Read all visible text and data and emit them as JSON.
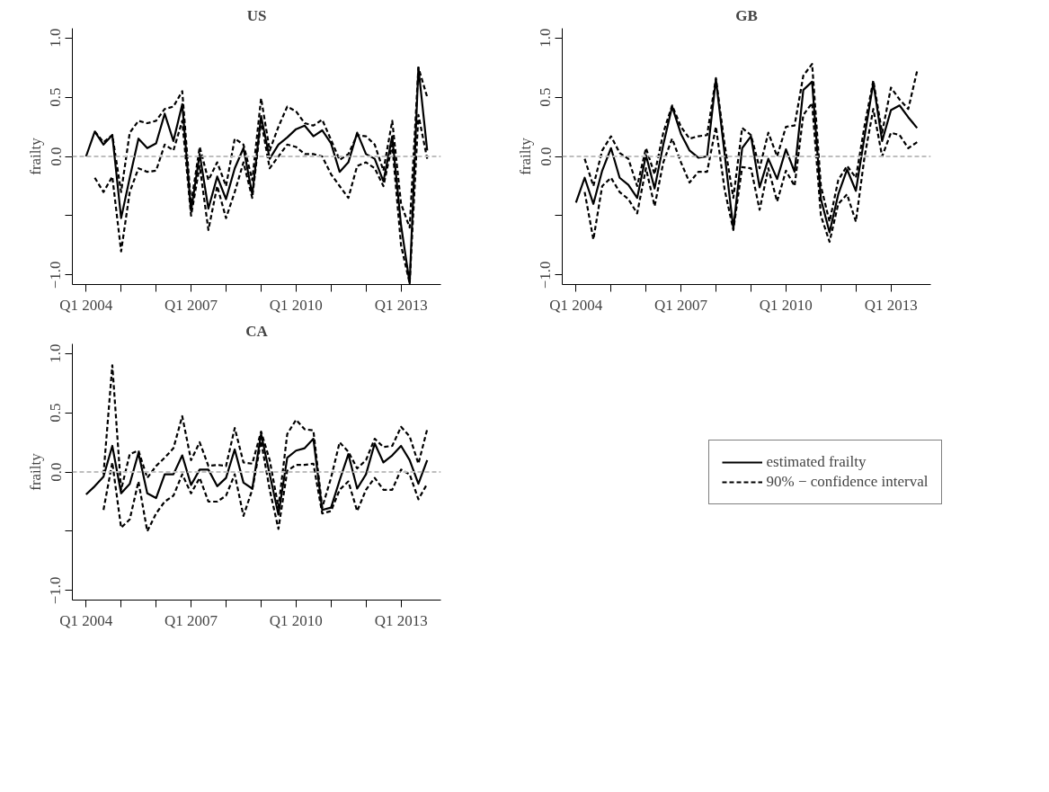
{
  "chart_data": [
    {
      "type": "line",
      "title": "US",
      "ylabel": "frailty",
      "xlim": [
        "2003-08-11",
        "2014-02-21"
      ],
      "ylim": [
        -1.08,
        1.08
      ],
      "xticks": [
        {
          "value": "2004-01",
          "label": "Q1 2004"
        },
        {
          "value": "2005-01",
          "label": null
        },
        {
          "value": "2006-01",
          "label": null
        },
        {
          "value": "2007-01",
          "label": "Q1 2007"
        },
        {
          "value": "2008-01",
          "label": null
        },
        {
          "value": "2009-01",
          "label": null
        },
        {
          "value": "2010-01",
          "label": "Q1 2010"
        },
        {
          "value": "2011-01",
          "label": null
        },
        {
          "value": "2012-01",
          "label": null
        },
        {
          "value": "2013-01",
          "label": "Q1 2013"
        }
      ],
      "yticks": [
        {
          "value": -1.0,
          "label": "−1.0"
        },
        {
          "value": -0.5,
          "label": null
        },
        {
          "value": 0.0,
          "label": "0.0"
        },
        {
          "value": 0.5,
          "label": "0.5"
        },
        {
          "value": 1.0,
          "label": "1.0"
        }
      ],
      "x": [
        "2004-01",
        "2004-04",
        "2004-07",
        "2004-10",
        "2005-01",
        "2005-04",
        "2005-07",
        "2005-10",
        "2006-01",
        "2006-04",
        "2006-07",
        "2006-10",
        "2007-01",
        "2007-04",
        "2007-07",
        "2007-10",
        "2008-01",
        "2008-04",
        "2008-07",
        "2008-10",
        "2009-01",
        "2009-04",
        "2009-07",
        "2009-10",
        "2010-01",
        "2010-04",
        "2010-07",
        "2010-10",
        "2011-01",
        "2011-04",
        "2011-07",
        "2011-10",
        "2012-01",
        "2012-04",
        "2012-07",
        "2012-10",
        "2013-01",
        "2013-04",
        "2013-07",
        "2013-10"
      ],
      "ref_lines": [
        {
          "axis": "y",
          "value": 0,
          "color": "#bebebe",
          "line_style": "dashed"
        }
      ],
      "grid": false,
      "series": [
        {
          "color": "#000000",
          "line_style": "solid",
          "values": [
            0.0,
            0.21,
            0.1,
            0.18,
            -0.52,
            -0.18,
            0.15,
            0.07,
            0.11,
            0.36,
            0.13,
            0.44,
            -0.46,
            0.02,
            -0.44,
            -0.17,
            -0.36,
            -0.1,
            0.07,
            -0.32,
            0.34,
            -0.02,
            0.1,
            0.16,
            0.23,
            0.26,
            0.17,
            0.22,
            0.11,
            -0.13,
            -0.05,
            0.2,
            0.02,
            -0.02,
            -0.21,
            0.17,
            -0.58,
            -1.07,
            0.75,
            0.05
          ]
        },
        {
          "color": "#000000",
          "line_style": "dashed",
          "values": [
            null,
            0.21,
            0.12,
            0.18,
            -0.3,
            0.2,
            0.3,
            0.28,
            0.3,
            0.4,
            0.42,
            0.55,
            -0.4,
            0.08,
            -0.2,
            -0.05,
            -0.25,
            0.15,
            0.1,
            -0.2,
            0.49,
            0.05,
            0.25,
            0.42,
            0.38,
            0.28,
            0.26,
            0.31,
            0.14,
            -0.03,
            0.02,
            0.18,
            0.17,
            0.1,
            -0.12,
            0.3,
            -0.4,
            -0.6,
            0.75,
            0.5
          ]
        },
        {
          "color": "#000000",
          "line_style": "dashed",
          "values": [
            null,
            -0.18,
            -0.3,
            -0.17,
            -0.8,
            -0.3,
            -0.1,
            -0.13,
            -0.12,
            0.1,
            0.05,
            0.3,
            -0.5,
            -0.08,
            -0.62,
            -0.25,
            -0.52,
            -0.3,
            -0.05,
            -0.35,
            0.3,
            -0.1,
            0.0,
            0.1,
            0.08,
            0.02,
            0.02,
            0.0,
            -0.15,
            -0.25,
            -0.35,
            -0.08,
            -0.05,
            -0.1,
            -0.25,
            0.1,
            -0.75,
            -1.07,
            0.35,
            -0.02
          ]
        }
      ]
    },
    {
      "type": "line",
      "title": "GB",
      "ylabel": "frailty",
      "xlim": [
        "2003-08-11",
        "2014-02-21"
      ],
      "ylim": [
        -1.08,
        1.08
      ],
      "xticks": [
        {
          "value": "2004-01",
          "label": "Q1 2004"
        },
        {
          "value": "2005-01",
          "label": null
        },
        {
          "value": "2006-01",
          "label": null
        },
        {
          "value": "2007-01",
          "label": "Q1 2007"
        },
        {
          "value": "2008-01",
          "label": null
        },
        {
          "value": "2009-01",
          "label": null
        },
        {
          "value": "2010-01",
          "label": "Q1 2010"
        },
        {
          "value": "2011-01",
          "label": null
        },
        {
          "value": "2012-01",
          "label": null
        },
        {
          "value": "2013-01",
          "label": "Q1 2013"
        }
      ],
      "yticks": [
        {
          "value": -1.0,
          "label": "−1.0"
        },
        {
          "value": -0.5,
          "label": null
        },
        {
          "value": 0.0,
          "label": "0.0"
        },
        {
          "value": 0.5,
          "label": "0.5"
        },
        {
          "value": 1.0,
          "label": "1.0"
        }
      ],
      "x": [
        "2004-01",
        "2004-04",
        "2004-07",
        "2004-10",
        "2005-01",
        "2005-04",
        "2005-07",
        "2005-10",
        "2006-01",
        "2006-04",
        "2006-07",
        "2006-10",
        "2007-01",
        "2007-04",
        "2007-07",
        "2007-10",
        "2008-01",
        "2008-04",
        "2008-07",
        "2008-10",
        "2009-01",
        "2009-04",
        "2009-07",
        "2009-10",
        "2010-01",
        "2010-04",
        "2010-07",
        "2010-10",
        "2011-01",
        "2011-04",
        "2011-07",
        "2011-10",
        "2012-01",
        "2012-04",
        "2012-07",
        "2012-10",
        "2013-01",
        "2013-04",
        "2013-07",
        "2013-10"
      ],
      "ref_lines": [
        {
          "axis": "y",
          "value": 0,
          "color": "#bebebe",
          "line_style": "dashed"
        }
      ],
      "grid": false,
      "series": [
        {
          "color": "#000000",
          "line_style": "solid",
          "values": [
            -0.39,
            -0.18,
            -0.4,
            -0.12,
            0.07,
            -0.18,
            -0.24,
            -0.35,
            0.01,
            -0.27,
            0.1,
            0.42,
            0.19,
            0.05,
            -0.01,
            0.0,
            0.65,
            0.02,
            -0.61,
            0.07,
            0.17,
            -0.26,
            -0.02,
            -0.19,
            0.06,
            -0.13,
            0.56,
            0.63,
            -0.36,
            -0.64,
            -0.32,
            -0.11,
            -0.29,
            0.17,
            0.62,
            0.13,
            0.39,
            0.43,
            0.33,
            0.24
          ]
        },
        {
          "color": "#000000",
          "line_style": "dashed",
          "values": [
            null,
            -0.02,
            -0.25,
            0.05,
            0.17,
            0.03,
            -0.02,
            -0.25,
            0.07,
            -0.15,
            0.2,
            0.43,
            0.25,
            0.15,
            0.17,
            0.18,
            0.66,
            0.1,
            -0.35,
            0.24,
            0.18,
            -0.1,
            0.2,
            0.0,
            0.25,
            0.26,
            0.68,
            0.78,
            -0.25,
            -0.55,
            -0.2,
            -0.08,
            -0.18,
            0.26,
            0.64,
            0.2,
            0.58,
            0.48,
            0.4,
            0.72
          ]
        },
        {
          "color": "#000000",
          "line_style": "dashed",
          "values": [
            null,
            -0.3,
            -0.7,
            -0.25,
            -0.18,
            -0.3,
            -0.36,
            -0.48,
            -0.1,
            -0.42,
            -0.05,
            0.15,
            -0.05,
            -0.22,
            -0.13,
            -0.13,
            0.25,
            -0.28,
            -0.62,
            -0.09,
            -0.1,
            -0.45,
            -0.1,
            -0.38,
            -0.12,
            -0.25,
            0.35,
            0.45,
            -0.5,
            -0.72,
            -0.4,
            -0.32,
            -0.55,
            0.0,
            0.4,
            0.0,
            0.2,
            0.18,
            0.07,
            0.12
          ]
        }
      ]
    },
    {
      "type": "line",
      "title": "CA",
      "ylabel": "frailty",
      "xlim": [
        "2003-08-11",
        "2014-02-21"
      ],
      "ylim": [
        -1.08,
        1.08
      ],
      "xticks": [
        {
          "value": "2004-01",
          "label": "Q1 2004"
        },
        {
          "value": "2005-01",
          "label": null
        },
        {
          "value": "2006-01",
          "label": null
        },
        {
          "value": "2007-01",
          "label": "Q1 2007"
        },
        {
          "value": "2008-01",
          "label": null
        },
        {
          "value": "2009-01",
          "label": null
        },
        {
          "value": "2010-01",
          "label": "Q1 2010"
        },
        {
          "value": "2011-01",
          "label": null
        },
        {
          "value": "2012-01",
          "label": null
        },
        {
          "value": "2013-01",
          "label": "Q1 2013"
        }
      ],
      "yticks": [
        {
          "value": -1.0,
          "label": "−1.0"
        },
        {
          "value": -0.5,
          "label": null
        },
        {
          "value": 0.0,
          "label": "0.0"
        },
        {
          "value": 0.5,
          "label": "0.5"
        },
        {
          "value": 1.0,
          "label": "1.0"
        }
      ],
      "x": [
        "2004-01",
        "2004-04",
        "2004-07",
        "2004-10",
        "2005-01",
        "2005-04",
        "2005-07",
        "2005-10",
        "2006-01",
        "2006-04",
        "2006-07",
        "2006-10",
        "2007-01",
        "2007-04",
        "2007-07",
        "2007-10",
        "2008-01",
        "2008-04",
        "2008-07",
        "2008-10",
        "2009-01",
        "2009-04",
        "2009-07",
        "2009-10",
        "2010-01",
        "2010-04",
        "2010-07",
        "2010-10",
        "2011-01",
        "2011-04",
        "2011-07",
        "2011-10",
        "2012-01",
        "2012-04",
        "2012-07",
        "2012-10",
        "2013-01",
        "2013-04",
        "2013-07",
        "2013-10"
      ],
      "ref_lines": [
        {
          "axis": "y",
          "value": 0,
          "color": "#bebebe",
          "line_style": "dashed"
        }
      ],
      "grid": false,
      "legend": "right",
      "series": [
        {
          "name": "estimated frailty",
          "color": "#000000",
          "line_style": "solid",
          "values": [
            -0.19,
            -0.12,
            -0.04,
            0.22,
            -0.18,
            -0.1,
            0.16,
            -0.18,
            -0.22,
            -0.02,
            -0.02,
            0.14,
            -0.11,
            0.02,
            0.02,
            -0.12,
            -0.05,
            0.19,
            -0.09,
            -0.14,
            0.32,
            -0.02,
            -0.36,
            0.12,
            0.18,
            0.2,
            0.28,
            -0.32,
            -0.3,
            -0.07,
            0.15,
            -0.14,
            -0.02,
            0.24,
            0.08,
            0.14,
            0.22,
            0.1,
            -0.1,
            0.1
          ]
        },
        {
          "name": "90% − confidence interval",
          "color": "#000000",
          "line_style": "dashed",
          "values": [
            null,
            null,
            -0.02,
            0.9,
            -0.15,
            0.15,
            0.18,
            -0.05,
            0.05,
            0.12,
            0.2,
            0.47,
            0.1,
            0.25,
            0.05,
            0.06,
            0.05,
            0.37,
            0.08,
            0.07,
            0.34,
            0.1,
            -0.3,
            0.32,
            0.44,
            0.36,
            0.35,
            -0.3,
            -0.05,
            0.25,
            0.17,
            0.03,
            0.1,
            0.28,
            0.21,
            0.22,
            0.38,
            0.3,
            0.07,
            0.36
          ]
        },
        {
          "color": "#000000",
          "line_style": "dashed",
          "values": [
            null,
            null,
            -0.32,
            0.08,
            -0.47,
            -0.4,
            -0.08,
            -0.5,
            -0.35,
            -0.25,
            -0.2,
            -0.02,
            -0.18,
            -0.05,
            -0.25,
            -0.25,
            -0.2,
            -0.02,
            -0.37,
            -0.15,
            0.26,
            -0.15,
            -0.48,
            0.01,
            0.06,
            0.06,
            0.07,
            -0.35,
            -0.33,
            -0.15,
            -0.08,
            -0.33,
            -0.15,
            -0.05,
            -0.15,
            -0.15,
            0.02,
            -0.02,
            -0.23,
            -0.1
          ]
        }
      ]
    }
  ]
}
